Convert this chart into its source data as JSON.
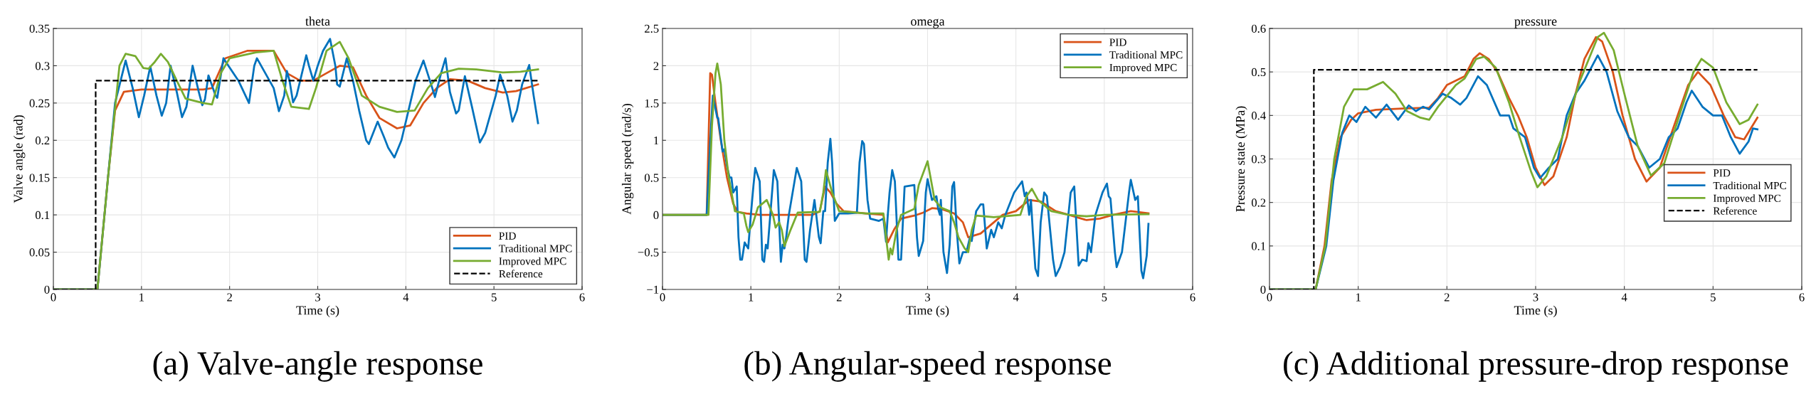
{
  "chart_data": [
    {
      "type": "line",
      "title": "theta",
      "xlabel": "Time (s)",
      "ylabel": "Valve angle (rad)",
      "xlim": [
        0,
        6
      ],
      "xticks": [
        0,
        1,
        2,
        3,
        4,
        5,
        6
      ],
      "ylim": [
        0,
        0.35
      ],
      "yticks": [
        0,
        0.05,
        0.1,
        0.15,
        0.2,
        0.25,
        0.3,
        0.35
      ],
      "grid": true,
      "legend": "bottom right",
      "annotations": [
        "(a) Valve-angle response"
      ],
      "series": [
        {
          "name": "PID",
          "color": "#d95319",
          "x": [
            0,
            0.5,
            0.62,
            0.7,
            0.8,
            1.0,
            1.7,
            1.8,
            1.95,
            2.2,
            2.5,
            2.65,
            2.8,
            2.95,
            3.1,
            3.25,
            3.4,
            3.55,
            3.7,
            3.9,
            4.05,
            4.2,
            4.35,
            4.5,
            4.7,
            4.9,
            5.1,
            5.25,
            5.5
          ],
          "values": [
            0,
            0,
            0.15,
            0.24,
            0.265,
            0.268,
            0.268,
            0.27,
            0.31,
            0.32,
            0.32,
            0.29,
            0.28,
            0.28,
            0.29,
            0.3,
            0.298,
            0.26,
            0.23,
            0.216,
            0.22,
            0.25,
            0.27,
            0.282,
            0.28,
            0.27,
            0.264,
            0.266,
            0.275
          ]
        },
        {
          "name": "Traditional MPC",
          "color": "#0072bd",
          "x": [
            0,
            0.5,
            0.62,
            0.7,
            0.82,
            0.9,
            0.97,
            1.03,
            1.1,
            1.17,
            1.23,
            1.28,
            1.33,
            1.4,
            1.46,
            1.51,
            1.58,
            1.65,
            1.69,
            1.72,
            1.76,
            1.84,
            1.86,
            1.93,
            2.1,
            2.22,
            2.28,
            2.31,
            2.5,
            2.56,
            2.62,
            2.65,
            2.68,
            2.72,
            2.76,
            2.87,
            2.9,
            2.95,
            3.0,
            3.06,
            3.14,
            3.2,
            3.22,
            3.25,
            3.33,
            3.4,
            3.47,
            3.55,
            3.58,
            3.68,
            3.75,
            3.8,
            3.87,
            3.95,
            4.05,
            4.11,
            4.2,
            4.3,
            4.33,
            4.4,
            4.45,
            4.5,
            4.57,
            4.6,
            4.67,
            4.75,
            4.84,
            4.9,
            5.02,
            5.07,
            5.15,
            5.21,
            5.26,
            5.32,
            5.4,
            5.45,
            5.5
          ],
          "values": [
            0,
            0,
            0.15,
            0.25,
            0.307,
            0.27,
            0.231,
            0.26,
            0.299,
            0.26,
            0.233,
            0.25,
            0.3,
            0.265,
            0.231,
            0.245,
            0.3,
            0.265,
            0.247,
            0.255,
            0.287,
            0.26,
            0.257,
            0.31,
            0.28,
            0.25,
            0.3,
            0.31,
            0.27,
            0.239,
            0.26,
            0.293,
            0.28,
            0.251,
            0.26,
            0.314,
            0.3,
            0.28,
            0.3,
            0.32,
            0.336,
            0.3,
            0.275,
            0.272,
            0.31,
            0.28,
            0.24,
            0.2,
            0.195,
            0.225,
            0.205,
            0.19,
            0.177,
            0.2,
            0.25,
            0.28,
            0.307,
            0.27,
            0.258,
            0.29,
            0.31,
            0.265,
            0.236,
            0.24,
            0.286,
            0.245,
            0.197,
            0.21,
            0.26,
            0.288,
            0.26,
            0.225,
            0.24,
            0.275,
            0.301,
            0.26,
            0.223
          ]
        },
        {
          "name": "Improved MPC",
          "color": "#77ac30",
          "x": [
            0,
            0.5,
            0.62,
            0.75,
            0.82,
            0.93,
            1.02,
            1.08,
            1.15,
            1.22,
            1.3,
            1.4,
            1.5,
            1.7,
            1.8,
            1.9,
            2.0,
            2.3,
            2.5,
            2.6,
            2.7,
            2.9,
            2.98,
            3.1,
            3.25,
            3.35,
            3.5,
            3.7,
            3.9,
            4.1,
            4.25,
            4.4,
            4.6,
            4.8,
            5.1,
            5.3,
            5.5
          ],
          "values": [
            0,
            0,
            0.15,
            0.3,
            0.316,
            0.313,
            0.297,
            0.296,
            0.305,
            0.316,
            0.305,
            0.28,
            0.256,
            0.25,
            0.248,
            0.29,
            0.31,
            0.318,
            0.32,
            0.28,
            0.245,
            0.242,
            0.27,
            0.32,
            0.332,
            0.31,
            0.26,
            0.245,
            0.238,
            0.24,
            0.27,
            0.29,
            0.296,
            0.295,
            0.291,
            0.292,
            0.295
          ]
        },
        {
          "name": "Reference",
          "color": "#000000",
          "line_style": "dashed",
          "x": [
            0,
            0.48,
            0.48,
            5.5
          ],
          "values": [
            0,
            0,
            0.28,
            0.28
          ]
        }
      ]
    },
    {
      "type": "line",
      "title": "omega",
      "xlabel": "Time (s)",
      "ylabel": "Angular speed (rad/s)",
      "xlim": [
        0,
        6
      ],
      "xticks": [
        0,
        1,
        2,
        3,
        4,
        5,
        6
      ],
      "ylim": [
        -1,
        2.5
      ],
      "yticks": [
        {
          "value": -1,
          "label": "−1"
        },
        {
          "value": -0.5,
          "label": "−0.5"
        },
        0,
        0.5,
        1,
        1.5,
        2,
        2.5
      ],
      "grid": true,
      "legend": "top right",
      "annotations": [
        "(b) Angular-speed response"
      ],
      "series": [
        {
          "name": "PID",
          "color": "#d95319",
          "x": [
            0,
            0.5,
            0.54,
            0.56,
            0.6,
            0.66,
            0.73,
            0.8,
            0.85,
            0.95,
            1.1,
            1.7,
            1.78,
            1.84,
            1.9,
            1.97,
            2.05,
            2.3,
            2.5,
            2.55,
            2.62,
            2.7,
            2.85,
            2.95,
            3.05,
            3.15,
            3.3,
            3.4,
            3.46,
            3.6,
            3.75,
            3.85,
            4.0,
            4.15,
            4.28,
            4.45,
            4.6,
            4.8,
            4.95,
            5.1,
            5.3,
            5.5
          ],
          "values": [
            0,
            0,
            1.9,
            1.88,
            1.5,
            1.0,
            0.5,
            0.15,
            0.04,
            0.02,
            0,
            0,
            0.05,
            0.38,
            0.3,
            0.15,
            0.05,
            0.02,
            0,
            -0.37,
            -0.2,
            -0.05,
            -0.01,
            0.03,
            0.09,
            0.08,
            0.02,
            -0.1,
            -0.3,
            -0.25,
            -0.1,
            0,
            0.05,
            0.2,
            0.18,
            0.05,
            0,
            -0.07,
            -0.05,
            0,
            0.05,
            0.02
          ]
        },
        {
          "name": "Traditional MPC",
          "color": "#0072bd",
          "x": [
            0,
            0.5,
            0.55,
            0.57,
            0.62,
            0.63,
            0.68,
            0.7,
            0.73,
            0.76,
            0.78,
            0.8,
            0.84,
            0.86,
            0.88,
            0.9,
            0.93,
            0.97,
            1.0,
            1.03,
            1.05,
            1.1,
            1.13,
            1.15,
            1.17,
            1.19,
            1.22,
            1.26,
            1.3,
            1.34,
            1.36,
            1.38,
            1.4,
            1.43,
            1.52,
            1.57,
            1.61,
            1.63,
            1.67,
            1.72,
            1.77,
            1.79,
            1.82,
            1.84,
            1.87,
            1.9,
            1.92,
            1.95,
            2.0,
            2.1,
            2.2,
            2.23,
            2.26,
            2.28,
            2.32,
            2.35,
            2.45,
            2.5,
            2.53,
            2.55,
            2.57,
            2.6,
            2.63,
            2.67,
            2.7,
            2.74,
            2.85,
            2.88,
            2.9,
            2.95,
            2.98,
            3.0,
            3.05,
            3.1,
            3.12,
            3.14,
            3.15,
            3.18,
            3.22,
            3.25,
            3.28,
            3.3,
            3.33,
            3.36,
            3.4,
            3.44,
            3.48,
            3.5,
            3.55,
            3.6,
            3.63,
            3.67,
            3.72,
            3.75,
            3.8,
            3.84,
            3.88,
            3.98,
            4.07,
            4.1,
            4.12,
            4.15,
            4.17,
            4.19,
            4.22,
            4.25,
            4.28,
            4.32,
            4.35,
            4.42,
            4.45,
            4.5,
            4.55,
            4.62,
            4.66,
            4.71,
            4.75,
            4.8,
            4.82,
            4.85,
            4.9,
            4.98,
            5.03,
            5.05,
            5.07,
            5.12,
            5.14,
            5.2,
            5.28,
            5.3,
            5.35,
            5.38,
            5.42,
            5.44,
            5.48,
            5.5
          ],
          "values": [
            0,
            0,
            1.2,
            1.6,
            1.3,
            1.3,
            0.85,
            0.88,
            0.65,
            0.5,
            0.5,
            0.3,
            0.38,
            -0.3,
            -0.6,
            -0.6,
            -0.37,
            -0.45,
            0,
            0.4,
            0.63,
            0.45,
            -0.6,
            -0.63,
            -0.4,
            -0.45,
            0,
            0.6,
            0.45,
            -0.63,
            -0.4,
            -0.45,
            -0.3,
            0,
            0.63,
            0.45,
            -0.6,
            -0.63,
            -0.2,
            0.2,
            -0.3,
            -0.38,
            0.05,
            0.05,
            0.7,
            1.02,
            0.7,
            -0.08,
            0.02,
            0.02,
            0.03,
            0.7,
            0.99,
            0.95,
            0.2,
            -0.05,
            -0.08,
            -0.05,
            -0.36,
            0,
            0.3,
            0.6,
            0.45,
            -0.6,
            -0.6,
            0.38,
            0.4,
            -0.3,
            -0.55,
            -0.35,
            0.3,
            0.48,
            0.2,
            0.25,
            0.08,
            0,
            0.2,
            -0.5,
            -0.78,
            -0.4,
            0.38,
            0.44,
            -0.2,
            -0.65,
            -0.5,
            -0.5,
            -0.3,
            -0.35,
            0.05,
            0.14,
            0.14,
            -0.45,
            -0.2,
            -0.3,
            -0.1,
            -0.18,
            0,
            0.3,
            0.45,
            0.25,
            0.3,
            0,
            0.2,
            -0.2,
            -0.72,
            -0.82,
            -0.1,
            0.3,
            0.25,
            -0.6,
            -0.82,
            -0.7,
            -0.5,
            0.3,
            0.38,
            -0.68,
            -0.6,
            -0.62,
            -0.38,
            -0.5,
            0,
            0.3,
            0.42,
            0.25,
            0.22,
            -0.5,
            -0.7,
            -0.5,
            0.3,
            0.47,
            0.2,
            0.25,
            -0.75,
            -0.85,
            -0.55,
            -0.12
          ]
        },
        {
          "name": "Improved MPC",
          "color": "#77ac30",
          "x": [
            0,
            0.52,
            0.56,
            0.6,
            0.62,
            0.66,
            0.7,
            0.75,
            0.82,
            0.92,
            0.95,
            0.97,
            1.02,
            1.08,
            1.18,
            1.25,
            1.28,
            1.32,
            1.35,
            1.38,
            1.45,
            1.53,
            1.78,
            1.82,
            1.85,
            1.92,
            2.0,
            2.3,
            2.5,
            2.53,
            2.56,
            2.58,
            2.6,
            2.65,
            2.7,
            2.85,
            2.9,
            3.0,
            3.08,
            3.15,
            3.25,
            3.3,
            3.35,
            3.42,
            3.46,
            3.5,
            3.55,
            3.75,
            4.05,
            4.12,
            4.18,
            4.25,
            4.4,
            4.6,
            4.8,
            5.0,
            5.5
          ],
          "values": [
            0,
            0,
            1.2,
            1.9,
            2.03,
            1.75,
            1.0,
            0.5,
            0.05,
            0.02,
            -0.15,
            -0.23,
            -0.13,
            0.1,
            0.2,
            0,
            -0.17,
            -0.1,
            -0.2,
            -0.42,
            -0.2,
            0.03,
            0.04,
            0.3,
            0.6,
            0.3,
            0.05,
            0.02,
            0.02,
            -0.3,
            -0.6,
            -0.45,
            -0.53,
            -0.2,
            0,
            0.08,
            0.4,
            0.72,
            0.2,
            0.1,
            0.05,
            -0.1,
            -0.3,
            -0.45,
            -0.5,
            -0.2,
            -0.01,
            -0.03,
            0,
            0.25,
            0.35,
            0.2,
            0.05,
            0,
            -0.02,
            0,
            0.01
          ]
        }
      ]
    },
    {
      "type": "line",
      "title": "pressure",
      "xlabel": "Time (s)",
      "ylabel": "Pressure state (MPa)",
      "xlim": [
        0,
        6
      ],
      "xticks": [
        0,
        1,
        2,
        3,
        4,
        5,
        6
      ],
      "ylim": [
        0,
        0.6
      ],
      "yticks": [
        0,
        0.1,
        0.2,
        0.3,
        0.4,
        0.5,
        0.6
      ],
      "grid": true,
      "legend": "right",
      "annotations": [
        "(c) Additional pressure-drop response"
      ],
      "series": [
        {
          "name": "PID",
          "color": "#d95319",
          "x": [
            0,
            0.52,
            0.62,
            0.7,
            0.8,
            0.92,
            1.0,
            1.2,
            1.5,
            1.8,
            1.9,
            2.0,
            2.2,
            2.3,
            2.37,
            2.47,
            2.57,
            2.7,
            2.8,
            2.9,
            3.0,
            3.1,
            3.2,
            3.35,
            3.45,
            3.55,
            3.68,
            3.75,
            3.87,
            3.98,
            4.12,
            4.25,
            4.4,
            4.55,
            4.72,
            4.83,
            4.97,
            5.12,
            5.25,
            5.35,
            5.5
          ],
          "values": [
            0,
            0,
            0.1,
            0.25,
            0.35,
            0.39,
            0.405,
            0.413,
            0.416,
            0.418,
            0.44,
            0.47,
            0.49,
            0.53,
            0.543,
            0.53,
            0.5,
            0.44,
            0.4,
            0.35,
            0.28,
            0.24,
            0.26,
            0.35,
            0.45,
            0.53,
            0.58,
            0.57,
            0.5,
            0.4,
            0.3,
            0.248,
            0.28,
            0.37,
            0.47,
            0.5,
            0.47,
            0.4,
            0.35,
            0.345,
            0.395
          ]
        },
        {
          "name": "Traditional MPC",
          "color": "#0072bd",
          "x": [
            0,
            0.52,
            0.64,
            0.72,
            0.82,
            0.9,
            0.98,
            1.08,
            1.2,
            1.32,
            1.45,
            1.57,
            1.65,
            1.73,
            1.8,
            1.95,
            2.05,
            2.15,
            2.22,
            2.35,
            2.45,
            2.6,
            2.7,
            2.75,
            2.88,
            2.98,
            3.05,
            3.15,
            3.25,
            3.35,
            3.45,
            3.55,
            3.7,
            3.8,
            3.92,
            4.05,
            4.15,
            4.28,
            4.4,
            4.5,
            4.6,
            4.7,
            4.76,
            4.88,
            5.0,
            5.1,
            5.2,
            5.3,
            5.4,
            5.45,
            5.5
          ],
          "values": [
            0,
            0,
            0.1,
            0.25,
            0.36,
            0.4,
            0.385,
            0.42,
            0.395,
            0.425,
            0.39,
            0.423,
            0.41,
            0.42,
            0.414,
            0.45,
            0.44,
            0.425,
            0.44,
            0.49,
            0.47,
            0.4,
            0.4,
            0.37,
            0.35,
            0.28,
            0.256,
            0.28,
            0.3,
            0.4,
            0.45,
            0.48,
            0.538,
            0.5,
            0.41,
            0.35,
            0.33,
            0.28,
            0.3,
            0.35,
            0.37,
            0.43,
            0.457,
            0.42,
            0.4,
            0.4,
            0.35,
            0.312,
            0.34,
            0.37,
            0.368
          ]
        },
        {
          "name": "Improved MPC",
          "color": "#77ac30",
          "x": [
            0,
            0.52,
            0.63,
            0.73,
            0.84,
            0.95,
            1.1,
            1.28,
            1.42,
            1.55,
            1.7,
            1.8,
            1.9,
            2.1,
            2.2,
            2.33,
            2.42,
            2.55,
            2.7,
            2.82,
            2.95,
            3.02,
            3.12,
            3.3,
            3.5,
            3.7,
            3.77,
            3.88,
            4.0,
            4.15,
            4.3,
            4.45,
            4.62,
            4.78,
            4.87,
            5.0,
            5.15,
            5.3,
            5.4,
            5.5
          ],
          "values": [
            0,
            0,
            0.1,
            0.3,
            0.42,
            0.46,
            0.46,
            0.477,
            0.45,
            0.41,
            0.395,
            0.39,
            0.42,
            0.47,
            0.485,
            0.53,
            0.535,
            0.51,
            0.43,
            0.35,
            0.27,
            0.235,
            0.26,
            0.35,
            0.48,
            0.58,
            0.59,
            0.55,
            0.45,
            0.33,
            0.262,
            0.29,
            0.4,
            0.5,
            0.53,
            0.51,
            0.43,
            0.38,
            0.39,
            0.425
          ]
        },
        {
          "name": "Reference",
          "color": "#000000",
          "line_style": "dashed",
          "x": [
            0,
            0.5,
            0.5,
            5.5
          ],
          "values": [
            0,
            0,
            0.505,
            0.505
          ]
        }
      ]
    }
  ]
}
